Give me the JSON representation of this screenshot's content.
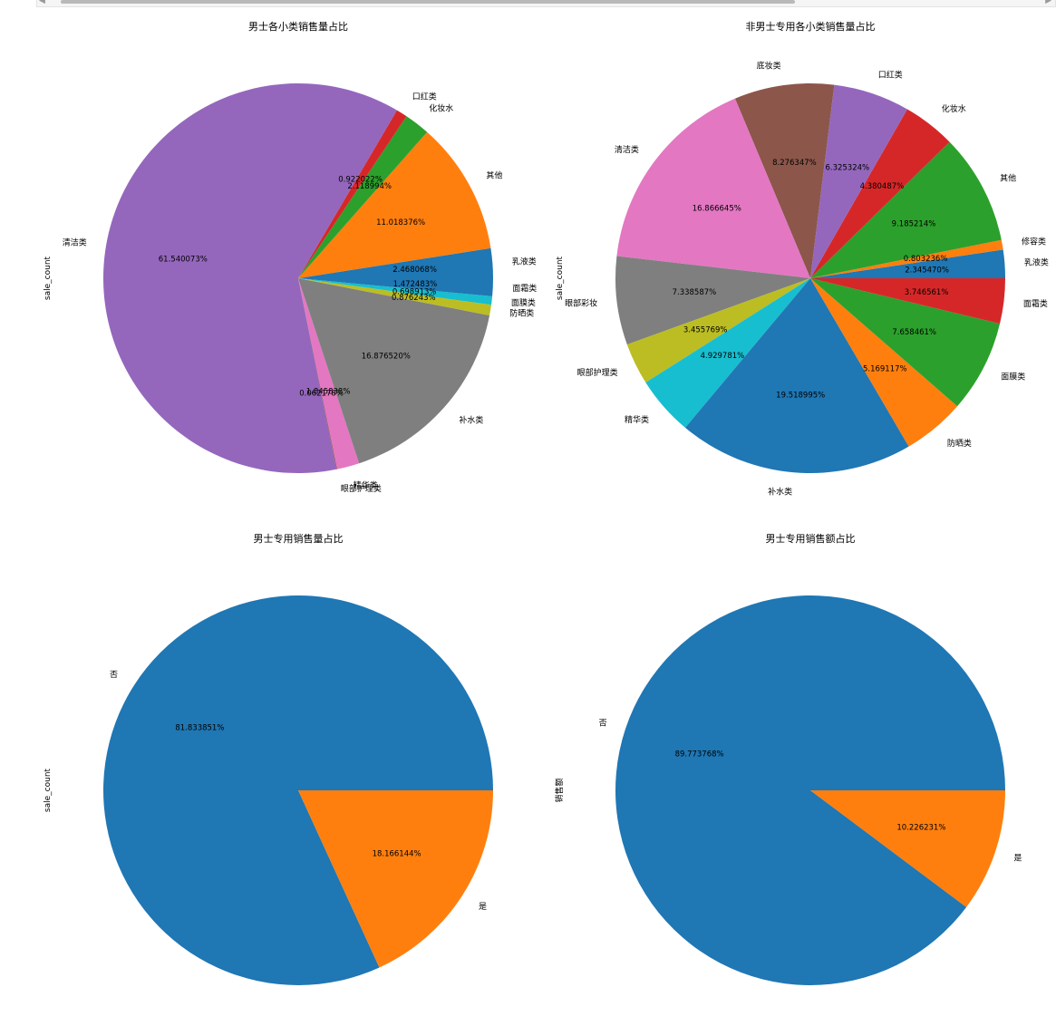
{
  "chart_data": [
    {
      "type": "pie",
      "title": "男士各小类销售量占比",
      "ylabel": "sale_count",
      "startangle": 0,
      "slices": [
        {
          "label": "乳液类",
          "value": 2.468068,
          "pct": "2.468068%",
          "color": "#1f77b4"
        },
        {
          "label": "其他",
          "value": 11.018376,
          "pct": "11.018376%",
          "color": "#ff7f0e"
        },
        {
          "label": "化妆水",
          "value": 2.118994,
          "pct": "2.118994%",
          "color": "#2ca02c"
        },
        {
          "label": "口红类",
          "value": 0.922022,
          "pct": "0.922022%",
          "color": "#d62728"
        },
        {
          "label": "清洁类",
          "value": 61.540073,
          "pct": "61.540073%",
          "color": "#9467bd"
        },
        {
          "label": "眼部护理类",
          "value": 0.062178,
          "pct": "0.062178%",
          "color": "#8c564b"
        },
        {
          "label": "精华类",
          "value": 1.845838,
          "pct": "1.845838%",
          "color": "#e377c2"
        },
        {
          "label": "补水类",
          "value": 16.87652,
          "pct": "16.876520%",
          "color": "#7f7f7f"
        },
        {
          "label": "防晒类",
          "value": 0.876243,
          "pct": "0.876243%",
          "color": "#bcbd22"
        },
        {
          "label": "面膜类",
          "value": 0.698913,
          "pct": "0.698913%",
          "color": "#17becf"
        },
        {
          "label": "面霜类",
          "value": 1.472483,
          "pct": "1.472483%",
          "color": "#1f77b4"
        }
      ]
    },
    {
      "type": "pie",
      "title": "非男士专用各小类销售量占比",
      "ylabel": "sale_count",
      "startangle": 0,
      "slices": [
        {
          "label": "乳液类",
          "value": 2.34547,
          "pct": "2.345470%",
          "color": "#1f77b4"
        },
        {
          "label": "修容类",
          "value": 0.803236,
          "pct": "0.803236%",
          "color": "#ff7f0e"
        },
        {
          "label": "其他",
          "value": 9.185214,
          "pct": "9.185214%",
          "color": "#2ca02c"
        },
        {
          "label": "化妆水",
          "value": 4.380487,
          "pct": "4.380487%",
          "color": "#d62728"
        },
        {
          "label": "口红类",
          "value": 6.325324,
          "pct": "6.325324%",
          "color": "#9467bd"
        },
        {
          "label": "底妆类",
          "value": 8.276347,
          "pct": "8.276347%",
          "color": "#8c564b"
        },
        {
          "label": "清洁类",
          "value": 16.866645,
          "pct": "16.866645%",
          "color": "#e377c2"
        },
        {
          "label": "眼部彩妆",
          "value": 7.338587,
          "pct": "7.338587%",
          "color": "#7f7f7f"
        },
        {
          "label": "眼部护理类",
          "value": 3.455769,
          "pct": "3.455769%",
          "color": "#bcbd22"
        },
        {
          "label": "精华类",
          "value": 4.929781,
          "pct": "4.929781%",
          "color": "#17becf"
        },
        {
          "label": "补水类",
          "value": 19.518995,
          "pct": "19.518995%",
          "color": "#1f77b4"
        },
        {
          "label": "防晒类",
          "value": 5.169117,
          "pct": "5.169117%",
          "color": "#ff7f0e"
        },
        {
          "label": "面膜类",
          "value": 7.658461,
          "pct": "7.658461%",
          "color": "#2ca02c"
        },
        {
          "label": "面霜类",
          "value": 3.746561,
          "pct": "3.746561%",
          "color": "#d62728"
        }
      ]
    },
    {
      "type": "pie",
      "title": "男士专用销售量占比",
      "ylabel": "sale_count",
      "startangle": 0,
      "slices": [
        {
          "label": "否",
          "value": 81.833851,
          "pct": "81.833851%",
          "color": "#1f77b4"
        },
        {
          "label": "是",
          "value": 18.166144,
          "pct": "18.166144%",
          "color": "#ff7f0e"
        }
      ]
    },
    {
      "type": "pie",
      "title": "男士专用销售额占比",
      "ylabel": "销售额",
      "startangle": 0,
      "slices": [
        {
          "label": "否",
          "value": 89.773768,
          "pct": "89.773768%",
          "color": "#1f77b4"
        },
        {
          "label": "是",
          "value": 10.226231,
          "pct": "10.226231%",
          "color": "#ff7f0e"
        }
      ]
    }
  ]
}
